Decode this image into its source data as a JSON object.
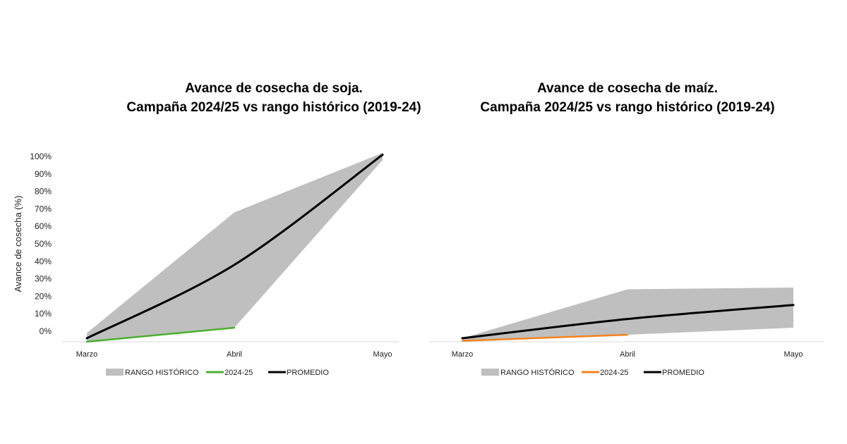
{
  "chart_data": [
    {
      "type": "area",
      "title_line1": "Avance de cosecha de soja.",
      "title_line2": "Campaña 2024/25 vs rango histórico (2019-24)",
      "ylabel": "Avance de cosecha (%)",
      "xlabel": "",
      "categories": [
        "Marzo",
        "Abril",
        "Mayo"
      ],
      "yticks": [
        "0%",
        "10%",
        "20%",
        "30%",
        "40%",
        "50%",
        "60%",
        "70%",
        "80%",
        "90%",
        "100%"
      ],
      "ylim": [
        -6,
        105
      ],
      "legend": [
        "RANGO HISTÓRICO",
        "2024-25",
        "PROMEDIO"
      ],
      "legend_position": "bottom",
      "range": {
        "name": "RANGO HISTÓRICO",
        "low": [
          -6,
          2,
          98
        ],
        "high": [
          -1,
          68,
          102
        ],
        "color": "#bfbfbf"
      },
      "series": [
        {
          "name": "2024-25",
          "values": [
            -6,
            2,
            null
          ],
          "color": "#4caf2f"
        },
        {
          "name": "PROMEDIO",
          "values": [
            -4,
            38,
            101
          ],
          "color": "#000000"
        }
      ],
      "grid": false
    },
    {
      "type": "area",
      "title_line1": "Avance de cosecha de maíz.",
      "title_line2": "Campaña 2024/25 vs rango histórico (2019-24)",
      "categories": [
        "Marzo",
        "Abril",
        "Mayo"
      ],
      "ylim": [
        -6,
        105
      ],
      "legend": [
        "RANGO HISTÓRICO",
        "2024-25",
        "PROMEDIO"
      ],
      "legend_position": "bottom",
      "range": {
        "name": "RANGO HISTÓRICO",
        "low": [
          -5.5,
          -2,
          2
        ],
        "high": [
          -4,
          24,
          25
        ],
        "color": "#bfbfbf"
      },
      "series": [
        {
          "name": "2024-25",
          "values": [
            -5.5,
            -2,
            null
          ],
          "color": "#f5821f"
        },
        {
          "name": "PROMEDIO",
          "values": [
            -4,
            7,
            15
          ],
          "color": "#000000"
        }
      ],
      "grid": false
    }
  ]
}
